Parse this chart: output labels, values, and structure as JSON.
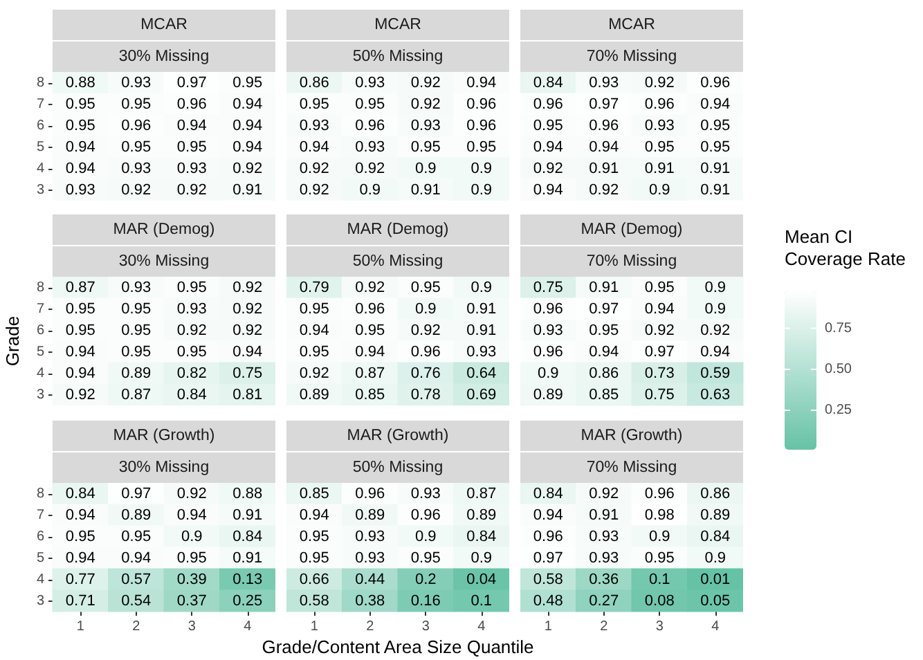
{
  "chart_data": [
    {
      "type": "heatmap",
      "title": "MCAR",
      "subtitle": "30% Missing",
      "categories": [
        "1",
        "2",
        "3",
        "4"
      ],
      "y_categories": [
        "8",
        "7",
        "6",
        "5",
        "4",
        "3"
      ],
      "tick_labels": "y",
      "data_labels": true,
      "cells": [
        [
          0.88,
          0.93,
          0.97,
          0.95
        ],
        [
          0.95,
          0.95,
          0.96,
          0.94
        ],
        [
          0.95,
          0.96,
          0.94,
          0.94
        ],
        [
          0.94,
          0.95,
          0.95,
          0.94
        ],
        [
          0.94,
          0.93,
          0.93,
          0.92
        ],
        [
          0.93,
          0.92,
          0.92,
          0.91
        ]
      ]
    },
    {
      "type": "heatmap",
      "title": "MCAR",
      "subtitle": "50% Missing",
      "categories": [
        "1",
        "2",
        "3",
        "4"
      ],
      "y_categories": [
        "8",
        "7",
        "6",
        "5",
        "4",
        "3"
      ],
      "tick_labels": false,
      "data_labels": true,
      "cells": [
        [
          0.86,
          0.93,
          0.92,
          0.94
        ],
        [
          0.95,
          0.95,
          0.92,
          0.96
        ],
        [
          0.93,
          0.96,
          0.93,
          0.96
        ],
        [
          0.94,
          0.93,
          0.95,
          0.95
        ],
        [
          0.92,
          0.92,
          0.9,
          0.9
        ],
        [
          0.92,
          0.9,
          0.91,
          0.9
        ]
      ]
    },
    {
      "type": "heatmap",
      "title": "MCAR",
      "subtitle": "70% Missing",
      "categories": [
        "1",
        "2",
        "3",
        "4"
      ],
      "y_categories": [
        "8",
        "7",
        "6",
        "5",
        "4",
        "3"
      ],
      "tick_labels": false,
      "data_labels": true,
      "cells": [
        [
          0.84,
          0.93,
          0.92,
          0.96
        ],
        [
          0.96,
          0.97,
          0.96,
          0.94
        ],
        [
          0.95,
          0.96,
          0.93,
          0.95
        ],
        [
          0.94,
          0.94,
          0.95,
          0.95
        ],
        [
          0.92,
          0.91,
          0.91,
          0.91
        ],
        [
          0.94,
          0.92,
          0.9,
          0.91
        ]
      ]
    },
    {
      "type": "heatmap",
      "title": "MAR (Demog)",
      "subtitle": "30% Missing",
      "ylabel": "Grade",
      "categories": [
        "1",
        "2",
        "3",
        "4"
      ],
      "y_categories": [
        "8",
        "7",
        "6",
        "5",
        "4",
        "3"
      ],
      "tick_labels": "y",
      "data_labels": true,
      "cells": [
        [
          0.87,
          0.93,
          0.95,
          0.92
        ],
        [
          0.95,
          0.95,
          0.93,
          0.92
        ],
        [
          0.95,
          0.95,
          0.92,
          0.92
        ],
        [
          0.94,
          0.95,
          0.95,
          0.94
        ],
        [
          0.94,
          0.89,
          0.82,
          0.75
        ],
        [
          0.92,
          0.87,
          0.84,
          0.81
        ]
      ]
    },
    {
      "type": "heatmap",
      "title": "MAR (Demog)",
      "subtitle": "50% Missing",
      "categories": [
        "1",
        "2",
        "3",
        "4"
      ],
      "y_categories": [
        "8",
        "7",
        "6",
        "5",
        "4",
        "3"
      ],
      "tick_labels": false,
      "data_labels": true,
      "cells": [
        [
          0.79,
          0.92,
          0.95,
          0.9
        ],
        [
          0.95,
          0.96,
          0.9,
          0.91
        ],
        [
          0.94,
          0.95,
          0.92,
          0.91
        ],
        [
          0.95,
          0.94,
          0.96,
          0.93
        ],
        [
          0.92,
          0.87,
          0.76,
          0.64
        ],
        [
          0.89,
          0.85,
          0.78,
          0.69
        ]
      ]
    },
    {
      "type": "heatmap",
      "title": "MAR (Demog)",
      "subtitle": "70% Missing",
      "clabel": "Mean CI\nCoverage Rate",
      "categories": [
        "1",
        "2",
        "3",
        "4"
      ],
      "y_categories": [
        "8",
        "7",
        "6",
        "5",
        "4",
        "3"
      ],
      "tick_labels": false,
      "data_labels": true,
      "clim": [
        0.01,
        0.98
      ],
      "cticks": [
        0.25,
        {
          "value": 0.5,
          "label": "0.50"
        },
        0.75
      ],
      "cells": [
        [
          0.75,
          0.91,
          0.95,
          0.9
        ],
        [
          0.96,
          0.97,
          0.94,
          0.9
        ],
        [
          0.93,
          0.95,
          0.92,
          0.92
        ],
        [
          0.96,
          0.94,
          0.97,
          0.94
        ],
        [
          0.9,
          0.86,
          0.73,
          0.59
        ],
        [
          0.89,
          0.85,
          0.75,
          0.63
        ]
      ]
    },
    {
      "type": "heatmap",
      "title": "MAR (Growth)",
      "subtitle": "30% Missing",
      "categories": [
        "1",
        "2",
        "3",
        "4"
      ],
      "y_categories": [
        "8",
        "7",
        "6",
        "5",
        "4",
        "3"
      ],
      "data_labels": true,
      "cells": [
        [
          0.84,
          0.97,
          0.92,
          0.88
        ],
        [
          0.94,
          0.89,
          0.94,
          0.91
        ],
        [
          0.95,
          0.95,
          0.9,
          0.84
        ],
        [
          0.94,
          0.94,
          0.95,
          0.91
        ],
        [
          0.77,
          0.57,
          0.39,
          0.13
        ],
        [
          0.71,
          0.54,
          0.37,
          0.25
        ]
      ]
    },
    {
      "type": "heatmap",
      "title": "MAR (Growth)",
      "subtitle": "50% Missing",
      "xlabel": "Grade/Content Area Size Quantile",
      "categories": [
        "1",
        "2",
        "3",
        "4"
      ],
      "y_categories": [
        "8",
        "7",
        "6",
        "5",
        "4",
        "3"
      ],
      "tick_labels": "x",
      "data_labels": true,
      "cells": [
        [
          0.85,
          0.96,
          0.93,
          0.87
        ],
        [
          0.94,
          0.89,
          0.96,
          0.89
        ],
        [
          0.95,
          0.93,
          0.9,
          0.84
        ],
        [
          0.95,
          0.93,
          0.95,
          0.9
        ],
        [
          0.66,
          0.44,
          0.2,
          0.04
        ],
        [
          0.58,
          0.38,
          0.16,
          0.1
        ]
      ]
    },
    {
      "type": "heatmap",
      "title": "MAR (Growth)",
      "subtitle": "70% Missing",
      "categories": [
        "1",
        "2",
        "3",
        "4"
      ],
      "y_categories": [
        "8",
        "7",
        "6",
        "5",
        "4",
        "3"
      ],
      "tick_labels": "x",
      "data_labels": true,
      "cells": [
        [
          0.84,
          0.92,
          0.96,
          0.86
        ],
        [
          0.94,
          0.91,
          0.98,
          0.89
        ],
        [
          0.96,
          0.93,
          0.9,
          0.84
        ],
        [
          0.97,
          0.93,
          0.95,
          0.9
        ],
        [
          0.58,
          0.36,
          0.1,
          0.01
        ],
        [
          0.48,
          0.27,
          0.08,
          0.05
        ]
      ]
    }
  ]
}
